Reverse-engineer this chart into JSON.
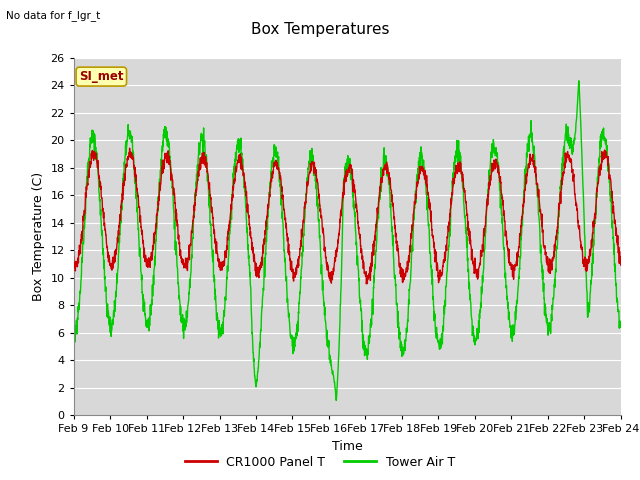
{
  "title": "Box Temperatures",
  "xlabel": "Time",
  "ylabel": "Box Temperature (C)",
  "top_left_note": "No data for f_lgr_t",
  "si_met_label": "SI_met",
  "legend_entries": [
    "CR1000 Panel T",
    "Tower Air T"
  ],
  "legend_colors": [
    "#cc0000",
    "#00cc00"
  ],
  "ylim": [
    0,
    26
  ],
  "yticks": [
    0,
    2,
    4,
    6,
    8,
    10,
    12,
    14,
    16,
    18,
    20,
    22,
    24,
    26
  ],
  "xtick_labels": [
    "Feb 9",
    "Feb 10",
    "Feb 11",
    "Feb 12",
    "Feb 13",
    "Feb 14",
    "Feb 15",
    "Feb 16",
    "Feb 17",
    "Feb 18",
    "Feb 19",
    "Feb 20",
    "Feb 21",
    "Feb 22",
    "Feb 23",
    "Feb 24"
  ],
  "background_color": "#ffffff",
  "plot_bg_color": "#d8d8d8",
  "grid_color": "#ffffff",
  "line_width": 1.0,
  "title_fontsize": 11,
  "axis_label_fontsize": 9,
  "tick_fontsize": 8
}
